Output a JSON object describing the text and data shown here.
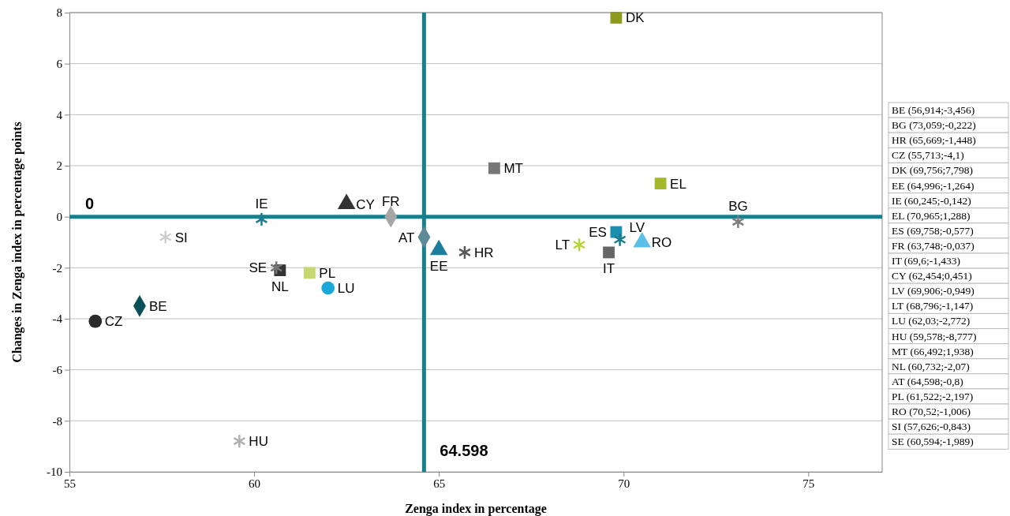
{
  "chart_data": {
    "type": "scatter",
    "xlabel": "Zenga index in percentage",
    "ylabel": "Changes in Zenga index in percentage points",
    "xlim": [
      55,
      77
    ],
    "xticks": [
      55,
      60,
      65,
      70,
      75
    ],
    "ylim": [
      -10,
      8
    ],
    "yticks": [
      -10,
      -8,
      -6,
      -4,
      -2,
      0,
      2,
      4,
      6,
      8
    ],
    "grid": "y",
    "ref_lines": [
      {
        "axis": "y",
        "value": 0,
        "label": "0",
        "color": "#16808c"
      },
      {
        "axis": "x",
        "value": 64.598,
        "label": "64.598",
        "color": "#16808c"
      }
    ],
    "annotations": [
      "BE (56,914;-3,456)",
      "BG (73,059;-0,222)",
      "HR (65,669;-1,448)",
      "CZ (55,713;-4,1)",
      "DK (69,756;7,798)",
      "EE (64,996;-1,264)",
      "IE (60,245;-0,142)",
      "EL (70,965;1,288)",
      "ES (69,758;-0,577)",
      "FR (63,748;-0,037)",
      "IT (69,6;-1,433)",
      "CY (62,454;0,451)",
      "LV (69,906;-0,949)",
      "LT (68,796;-1,147)",
      "LU (62,03;-2,772)",
      "HU (59,578;-8,777)",
      "MT (66,492;1,938)",
      "NL (60,732;-2,07)",
      "AT (64,598;-0,8)",
      "PL (61,522;-2,197)",
      "RO (70,52;-1,006)",
      "SI (57,626;-0,843)",
      "SE (60,594;-1,989)"
    ],
    "series": [
      {
        "name": "BE",
        "color": "#0b4f57",
        "marker": "diamond",
        "x": [
          56.9
        ],
        "values": [
          -3.5
        ]
      },
      {
        "name": "BG",
        "color": "#7f7f7f",
        "marker": "cross",
        "x": [
          73.1
        ],
        "values": [
          -0.2
        ]
      },
      {
        "name": "HR",
        "color": "#595959",
        "marker": "cross",
        "x": [
          65.7
        ],
        "values": [
          -1.4
        ]
      },
      {
        "name": "CZ",
        "color": "#2b2b2b",
        "marker": "circle",
        "x": [
          55.7
        ],
        "values": [
          -4.1
        ]
      },
      {
        "name": "DK",
        "color": "#8c9a1e",
        "marker": "square",
        "x": [
          69.8
        ],
        "values": [
          7.8
        ]
      },
      {
        "name": "EE",
        "color": "#1b7f9b",
        "marker": "triangle",
        "x": [
          65.0
        ],
        "values": [
          -1.3
        ]
      },
      {
        "name": "IE",
        "color": "#1b7f8f",
        "marker": "cross",
        "x": [
          60.2
        ],
        "values": [
          -0.1
        ]
      },
      {
        "name": "EL",
        "color": "#a5b82a",
        "marker": "square",
        "x": [
          71.0
        ],
        "values": [
          1.3
        ]
      },
      {
        "name": "ES",
        "color": "#1b8fb0",
        "marker": "square",
        "x": [
          69.8
        ],
        "values": [
          -0.6
        ]
      },
      {
        "name": "FR",
        "color": "#a6a6a6",
        "marker": "diamond",
        "x": [
          63.7
        ],
        "values": [
          0.0
        ]
      },
      {
        "name": "IT",
        "color": "#666666",
        "marker": "square",
        "x": [
          69.6
        ],
        "values": [
          -1.4
        ]
      },
      {
        "name": "CY",
        "color": "#333333",
        "marker": "triangle",
        "x": [
          62.5
        ],
        "values": [
          0.5
        ]
      },
      {
        "name": "LV",
        "color": "#1a7a8a",
        "marker": "cross",
        "x": [
          69.9
        ],
        "values": [
          -0.9
        ]
      },
      {
        "name": "LT",
        "color": "#b5d334",
        "marker": "cross",
        "x": [
          68.8
        ],
        "values": [
          -1.1
        ]
      },
      {
        "name": "LU",
        "color": "#1aa8d8",
        "marker": "circle",
        "x": [
          62.0
        ],
        "values": [
          -2.8
        ]
      },
      {
        "name": "HU",
        "color": "#b0b0b0",
        "marker": "cross",
        "x": [
          59.6
        ],
        "values": [
          -8.8
        ]
      },
      {
        "name": "MT",
        "color": "#777777",
        "marker": "square",
        "x": [
          66.5
        ],
        "values": [
          1.9
        ]
      },
      {
        "name": "NL",
        "color": "#333333",
        "marker": "square",
        "x": [
          60.7
        ],
        "values": [
          -2.1
        ]
      },
      {
        "name": "AT",
        "color": "#5d8a96",
        "marker": "diamond",
        "x": [
          64.6
        ],
        "values": [
          -0.8
        ]
      },
      {
        "name": "PL",
        "color": "#c8d870",
        "marker": "square",
        "x": [
          61.5
        ],
        "values": [
          -2.2
        ]
      },
      {
        "name": "RO",
        "color": "#5bc0e8",
        "marker": "triangle",
        "x": [
          70.5
        ],
        "values": [
          -1.0
        ]
      },
      {
        "name": "SI",
        "color": "#cfcfcf",
        "marker": "cross",
        "x": [
          57.6
        ],
        "values": [
          -0.8
        ]
      },
      {
        "name": "SE",
        "color": "#777777",
        "marker": "cross",
        "x": [
          60.6
        ],
        "values": [
          -2.0
        ]
      }
    ]
  }
}
